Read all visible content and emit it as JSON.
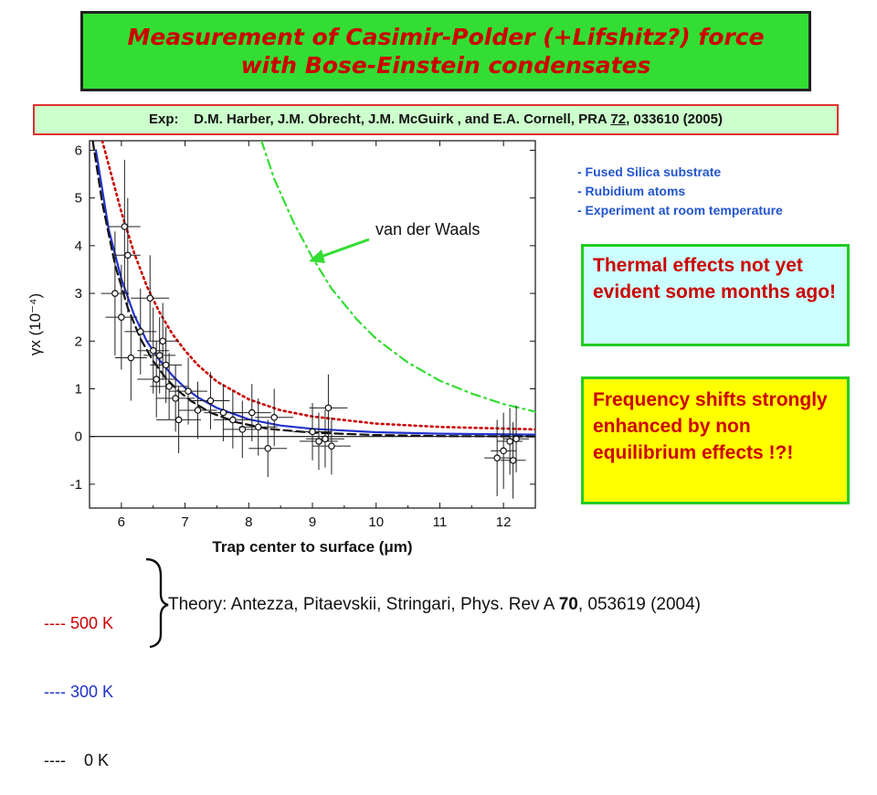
{
  "title": {
    "line1": "Measurement of Casimir-Polder (+Lifshitz?) force",
    "line2": "with Bose-Einstein condensates"
  },
  "reference": {
    "prefix": "Exp:    D.M. Harber, J.M. Obrecht, J.M. McGuirk , and E.A. Cornell, PRA ",
    "volume": "72",
    "suffix": ", 033610 (2005)"
  },
  "notes": [
    "- Fused Silica substrate",
    "- Rubidium atoms",
    "- Experiment at room temperature"
  ],
  "box_thermal": "Thermal effects not yet evident some months ago!",
  "box_frequency": "Frequency shifts strongly enhanced by non equilibrium effects !?!",
  "legend": [
    {
      "dashes": "----",
      "label": " 500 K",
      "color": "#cc0000"
    },
    {
      "dashes": "----",
      "label": " 300 K",
      "color": "#2233cc"
    },
    {
      "dashes": "----",
      "label": "    0 K",
      "color": "#111111"
    }
  ],
  "theory": {
    "prefix": "Theory: Antezza, Pitaevskii, Stringari, Phys. Rev A ",
    "volume": "70",
    "suffix": ", 053619 (2004)"
  },
  "colors": {
    "title_bg": "#33dd33",
    "title_text": "#cc0000",
    "ref_bg": "#ccffcc",
    "ref_border": "#e03030",
    "notes_text": "#2255cc",
    "thermal_bg": "#ccffff",
    "frequency_bg": "#ffff00",
    "box_border": "#22cc22",
    "curve_500K": "#cc0000",
    "curve_300K": "#2233cc",
    "curve_0K": "#111111",
    "curve_vdw": "#33dd33"
  },
  "chart_data": {
    "type": "scatter",
    "xlabel": "Trap center to surface (μm)",
    "ylabel": "γx  (10⁻⁴)",
    "xlim": [
      5.5,
      12.5
    ],
    "ylim": [
      -1.5,
      6.2
    ],
    "xticks": [
      6,
      7,
      8,
      9,
      10,
      11,
      12
    ],
    "yticks": [
      -1,
      0,
      1,
      2,
      3,
      4,
      5,
      6
    ],
    "grid": false,
    "annotation": "van der Waals",
    "points": [
      {
        "x": 5.9,
        "y": 3.0,
        "xerr": 0.22,
        "yerr": 1.3
      },
      {
        "x": 6.05,
        "y": 4.4,
        "xerr": 0.25,
        "yerr": 1.4
      },
      {
        "x": 6.1,
        "y": 3.8,
        "xerr": 0.2,
        "yerr": 1.2
      },
      {
        "x": 6.0,
        "y": 2.5,
        "xerr": 0.25,
        "yerr": 1.1
      },
      {
        "x": 6.15,
        "y": 1.65,
        "xerr": 0.25,
        "yerr": 0.9
      },
      {
        "x": 6.3,
        "y": 2.2,
        "xerr": 0.25,
        "yerr": 0.9
      },
      {
        "x": 6.45,
        "y": 2.9,
        "xerr": 0.3,
        "yerr": 0.9
      },
      {
        "x": 6.5,
        "y": 1.8,
        "xerr": 0.25,
        "yerr": 0.9
      },
      {
        "x": 6.6,
        "y": 1.7,
        "xerr": 0.25,
        "yerr": 0.8
      },
      {
        "x": 6.55,
        "y": 1.2,
        "xerr": 0.3,
        "yerr": 0.8
      },
      {
        "x": 6.65,
        "y": 2.0,
        "xerr": 0.25,
        "yerr": 0.8
      },
      {
        "x": 6.7,
        "y": 1.5,
        "xerr": 0.25,
        "yerr": 0.8
      },
      {
        "x": 6.75,
        "y": 1.05,
        "xerr": 0.3,
        "yerr": 0.7
      },
      {
        "x": 6.85,
        "y": 0.8,
        "xerr": 0.3,
        "yerr": 0.7
      },
      {
        "x": 6.9,
        "y": 0.35,
        "xerr": 0.35,
        "yerr": 0.7
      },
      {
        "x": 7.05,
        "y": 0.95,
        "xerr": 0.3,
        "yerr": 0.7
      },
      {
        "x": 7.2,
        "y": 0.55,
        "xerr": 0.3,
        "yerr": 0.6
      },
      {
        "x": 7.4,
        "y": 0.75,
        "xerr": 0.3,
        "yerr": 0.6
      },
      {
        "x": 7.6,
        "y": 0.5,
        "xerr": 0.3,
        "yerr": 0.6
      },
      {
        "x": 7.75,
        "y": 0.35,
        "xerr": 0.3,
        "yerr": 0.6
      },
      {
        "x": 7.9,
        "y": 0.15,
        "xerr": 0.3,
        "yerr": 0.6
      },
      {
        "x": 8.05,
        "y": 0.5,
        "xerr": 0.3,
        "yerr": 0.6
      },
      {
        "x": 8.15,
        "y": 0.2,
        "xerr": 0.3,
        "yerr": 0.6
      },
      {
        "x": 8.3,
        "y": -0.25,
        "xerr": 0.3,
        "yerr": 0.6
      },
      {
        "x": 8.4,
        "y": 0.4,
        "xerr": 0.3,
        "yerr": 0.6
      },
      {
        "x": 9.0,
        "y": 0.1,
        "xerr": 0.3,
        "yerr": 0.6
      },
      {
        "x": 9.1,
        "y": -0.1,
        "xerr": 0.3,
        "yerr": 0.6
      },
      {
        "x": 9.2,
        "y": -0.05,
        "xerr": 0.3,
        "yerr": 0.6
      },
      {
        "x": 9.25,
        "y": 0.6,
        "xerr": 0.3,
        "yerr": 0.7
      },
      {
        "x": 9.3,
        "y": -0.2,
        "xerr": 0.3,
        "yerr": 0.6
      },
      {
        "x": 11.9,
        "y": -0.45,
        "xerr": 0.2,
        "yerr": 0.8
      },
      {
        "x": 12.0,
        "y": -0.3,
        "xerr": 0.2,
        "yerr": 0.8
      },
      {
        "x": 12.1,
        "y": -0.1,
        "xerr": 0.2,
        "yerr": 0.7
      },
      {
        "x": 12.15,
        "y": -0.5,
        "xerr": 0.2,
        "yerr": 0.8
      },
      {
        "x": 12.2,
        "y": -0.05,
        "xerr": 0.2,
        "yerr": 0.7
      }
    ],
    "series": [
      {
        "name": "500 K",
        "color": "#cc0000",
        "style": "dotted",
        "x": [
          5.7,
          5.9,
          6.0,
          6.2,
          6.4,
          6.6,
          6.8,
          7.0,
          7.2,
          7.5,
          8.0,
          8.5,
          9.0,
          10.0,
          11.0,
          12.5
        ],
        "y": [
          6.2,
          5.2,
          4.7,
          3.85,
          3.15,
          2.6,
          2.15,
          1.8,
          1.5,
          1.15,
          0.78,
          0.55,
          0.42,
          0.27,
          0.2,
          0.15
        ]
      },
      {
        "name": "300 K",
        "color": "#2233cc",
        "style": "solid",
        "x": [
          5.6,
          5.8,
          6.0,
          6.2,
          6.4,
          6.6,
          6.8,
          7.0,
          7.2,
          7.5,
          8.0,
          8.5,
          9.0,
          10.0,
          11.0,
          12.5
        ],
        "y": [
          6.0,
          4.35,
          3.3,
          2.55,
          2.0,
          1.6,
          1.28,
          1.02,
          0.82,
          0.6,
          0.36,
          0.23,
          0.16,
          0.09,
          0.06,
          0.04
        ]
      },
      {
        "name": "0 K",
        "color": "#111111",
        "style": "dashed",
        "x": [
          5.55,
          5.7,
          5.9,
          6.1,
          6.3,
          6.5,
          6.7,
          6.9,
          7.1,
          7.4,
          7.8,
          8.3,
          9.0,
          10.0,
          11.0,
          12.5
        ],
        "y": [
          6.2,
          4.9,
          3.6,
          2.7,
          2.05,
          1.58,
          1.22,
          0.95,
          0.74,
          0.5,
          0.3,
          0.16,
          0.08,
          0.03,
          0.01,
          0.0
        ]
      },
      {
        "name": "van der Waals",
        "color": "#33dd33",
        "style": "dashdot",
        "x": [
          8.2,
          8.4,
          8.7,
          9.0,
          9.3,
          9.7,
          10.0,
          10.5,
          11.0,
          11.5,
          12.0,
          12.5
        ],
        "y": [
          6.2,
          5.4,
          4.5,
          3.75,
          3.1,
          2.45,
          2.05,
          1.55,
          1.17,
          0.9,
          0.68,
          0.52
        ]
      }
    ]
  }
}
